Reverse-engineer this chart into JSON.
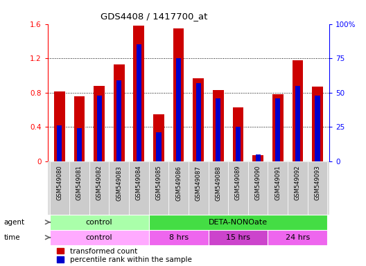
{
  "title": "GDS4408 / 1417700_at",
  "samples": [
    "GSM549080",
    "GSM549081",
    "GSM549082",
    "GSM549083",
    "GSM549084",
    "GSM549085",
    "GSM549086",
    "GSM549087",
    "GSM549088",
    "GSM549089",
    "GSM549090",
    "GSM549091",
    "GSM549092",
    "GSM549093"
  ],
  "red_values": [
    0.81,
    0.76,
    0.88,
    1.13,
    1.58,
    0.55,
    1.55,
    0.97,
    0.83,
    0.63,
    0.07,
    0.78,
    1.18,
    0.87
  ],
  "blue_pct": [
    26,
    24,
    48,
    59,
    85,
    21,
    75,
    57,
    46,
    25,
    5,
    46,
    55,
    48
  ],
  "ylim_left": [
    0,
    1.6
  ],
  "ylim_right": [
    0,
    100
  ],
  "yticks_left": [
    0,
    0.4,
    0.8,
    1.2,
    1.6
  ],
  "yticks_right": [
    0,
    25,
    50,
    75,
    100
  ],
  "ytick_labels_left": [
    "0",
    "0.4",
    "0.8",
    "1.2",
    "1.6"
  ],
  "ytick_labels_right": [
    "0",
    "25",
    "50",
    "75",
    "100%"
  ],
  "bar_color_red": "#cc0000",
  "bar_color_blue": "#0000cc",
  "agent_groups": [
    {
      "label": "control",
      "start": 0,
      "end": 5,
      "color": "#aaffaa"
    },
    {
      "label": "DETA-NONOate",
      "start": 5,
      "end": 14,
      "color": "#44dd44"
    }
  ],
  "time_groups": [
    {
      "label": "control",
      "start": 0,
      "end": 5,
      "color": "#ffaaff"
    },
    {
      "label": "8 hrs",
      "start": 5,
      "end": 8,
      "color": "#ee66ee"
    },
    {
      "label": "15 hrs",
      "start": 8,
      "end": 11,
      "color": "#cc44cc"
    },
    {
      "label": "24 hrs",
      "start": 11,
      "end": 14,
      "color": "#ee66ee"
    }
  ],
  "legend_red": "transformed count",
  "legend_blue": "percentile rank within the sample",
  "agent_label": "agent",
  "time_label": "time",
  "bar_width": 0.55,
  "blue_bar_width": 0.25
}
